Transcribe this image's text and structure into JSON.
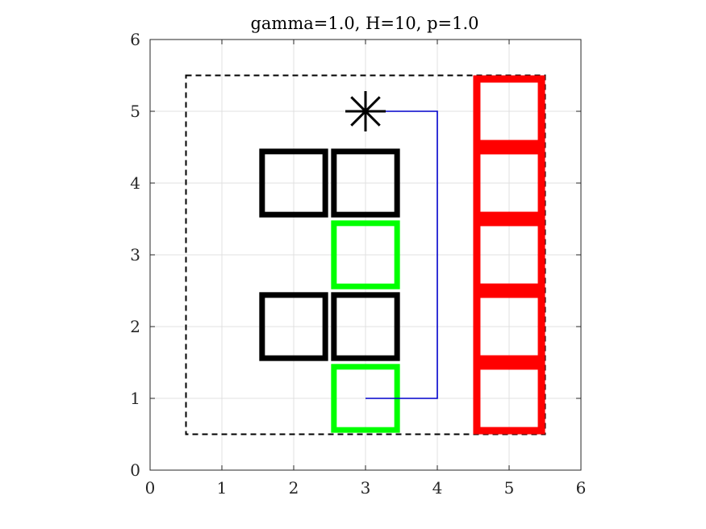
{
  "chart_data": {
    "type": "scatter",
    "title": "gamma=1.0, H=10, p=1.0",
    "xlabel": "",
    "ylabel": "",
    "xlim": [
      0,
      6
    ],
    "ylim": [
      0,
      6
    ],
    "xticks": [
      "0",
      "1",
      "2",
      "3",
      "4",
      "5",
      "6"
    ],
    "yticks": [
      "0",
      "1",
      "2",
      "3",
      "4",
      "5",
      "6"
    ],
    "grid": true,
    "boundary": {
      "x": [
        0.5,
        5.5
      ],
      "y": [
        0.5,
        5.5
      ],
      "style": "dashed",
      "color": "#000000"
    },
    "obstacles": [
      {
        "x": 2,
        "y": 4
      },
      {
        "x": 3,
        "y": 4
      },
      {
        "x": 2,
        "y": 2
      },
      {
        "x": 3,
        "y": 2
      }
    ],
    "green_cells": [
      {
        "x": 3,
        "y": 3
      },
      {
        "x": 3,
        "y": 1
      }
    ],
    "red_cells": [
      {
        "x": 5,
        "y": 5
      },
      {
        "x": 5,
        "y": 4
      },
      {
        "x": 5,
        "y": 3
      },
      {
        "x": 5,
        "y": 2
      },
      {
        "x": 5,
        "y": 1
      }
    ],
    "path": {
      "x": [
        3,
        4,
        4,
        3
      ],
      "y": [
        1,
        1,
        5,
        5
      ],
      "color": "#0000cc"
    },
    "goal_marker": {
      "x": 3,
      "y": 5,
      "symbol": "asterisk"
    },
    "colors": {
      "obstacle": "#000000",
      "green": "#00ff00",
      "red": "#ff0000",
      "grid": "#e0e0e0",
      "axis": "#262626"
    }
  }
}
